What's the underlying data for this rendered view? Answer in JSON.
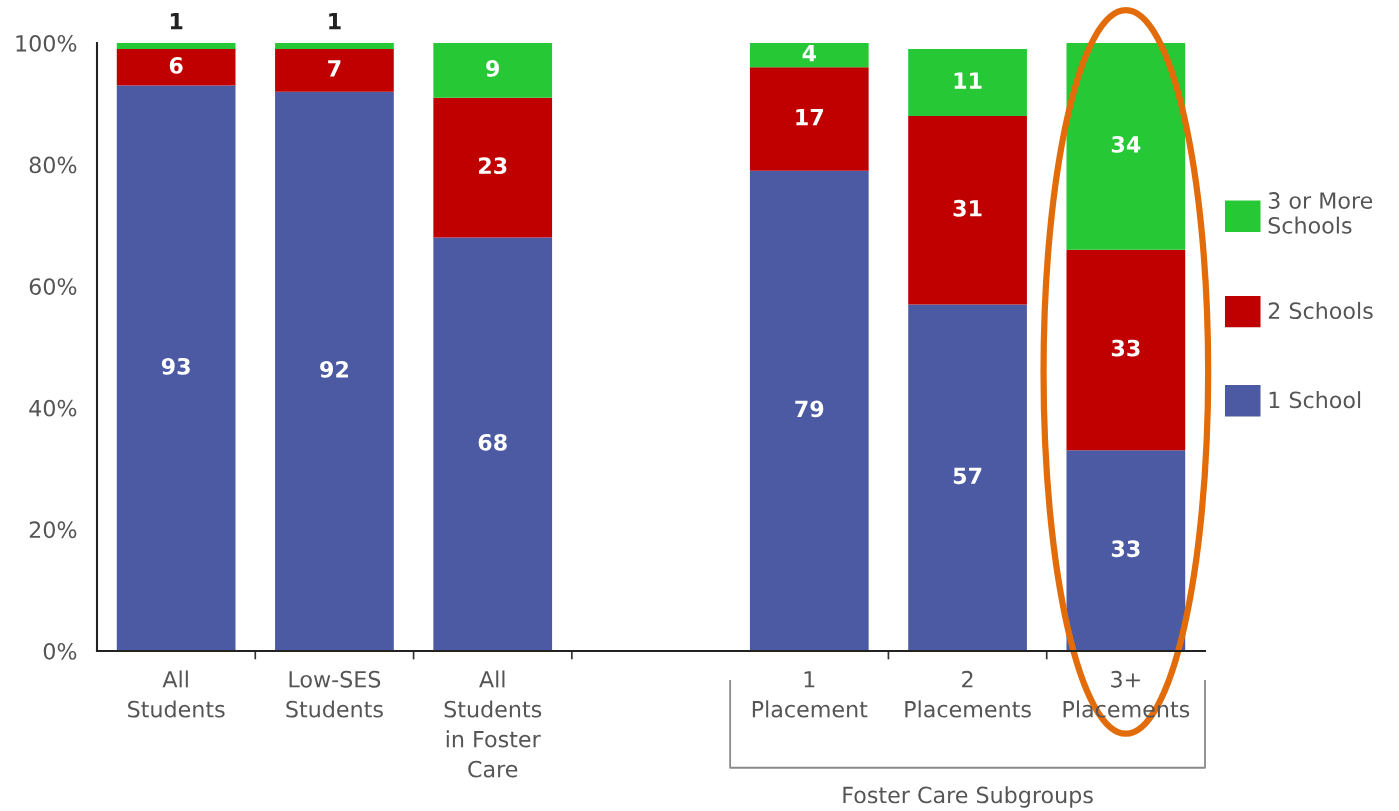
{
  "chart_data": {
    "type": "bar",
    "stacked": true,
    "categories": [
      "All\nStudents",
      "Low-SES\nStudents",
      "All\nStudents\nin Foster\nCare",
      null,
      "1\nPlacement",
      "2\nPlacements",
      "3+\nPlacements"
    ],
    "series": [
      {
        "name": "1 School",
        "color": "#4b5aa2",
        "values": [
          93,
          92,
          68,
          null,
          79,
          57,
          33
        ]
      },
      {
        "name": "2 Schools",
        "color": "#c00000",
        "values": [
          6,
          7,
          23,
          null,
          17,
          31,
          33
        ]
      },
      {
        "name": "3 or More\nSchools",
        "color": "#26c935",
        "values": [
          1,
          1,
          9,
          null,
          4,
          11,
          34
        ]
      }
    ],
    "ylim": [
      0,
      100
    ],
    "yticks": [
      {
        "value": 0,
        "label": "0%"
      },
      {
        "value": 20,
        "label": "20%"
      },
      {
        "value": 40,
        "label": "40%"
      },
      {
        "value": 60,
        "label": "60%"
      },
      {
        "value": 80,
        "label": "80%"
      },
      {
        "value": 100,
        "label": "100%"
      }
    ],
    "data_labels": true,
    "legend": "right",
    "grid": false,
    "annotations": [
      "Foster Care Subgroups"
    ]
  }
}
